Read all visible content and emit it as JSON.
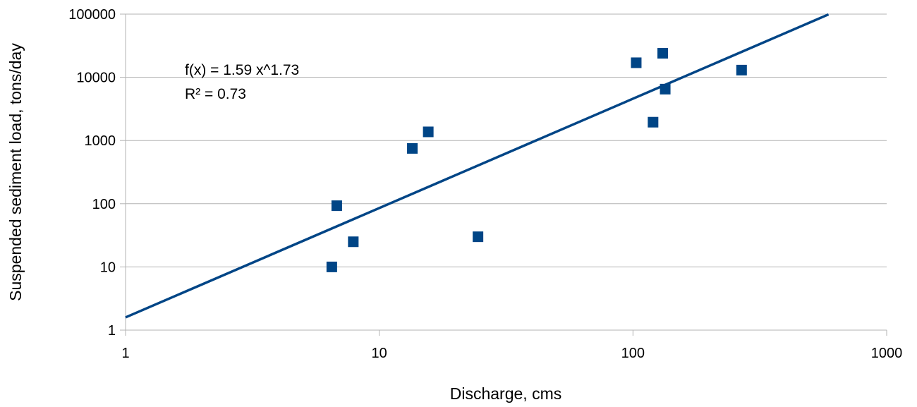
{
  "chart_data": {
    "type": "scatter",
    "xlabel": "Discharge, cms",
    "ylabel": "Suspended sediment load, tons/day",
    "x_scale": "log",
    "y_scale": "log",
    "xlim": [
      1,
      1000
    ],
    "ylim": [
      1,
      100000
    ],
    "x_ticks": [
      "1",
      "10",
      "100",
      "1000"
    ],
    "y_ticks": [
      "1",
      "10",
      "100",
      "1000",
      "10000",
      "100000"
    ],
    "grid": "horizontal",
    "legend": "none",
    "points": [
      {
        "x": 6.5,
        "y": 10
      },
      {
        "x": 6.8,
        "y": 93
      },
      {
        "x": 7.9,
        "y": 25
      },
      {
        "x": 13.5,
        "y": 750
      },
      {
        "x": 15.6,
        "y": 1370
      },
      {
        "x": 24.5,
        "y": 30
      },
      {
        "x": 103,
        "y": 17000
      },
      {
        "x": 120,
        "y": 1950
      },
      {
        "x": 131,
        "y": 24000
      },
      {
        "x": 134,
        "y": 6500
      },
      {
        "x": 268,
        "y": 13000
      }
    ],
    "trendline": {
      "type": "power",
      "a": 1.59,
      "b": 1.73,
      "x_range": [
        1,
        590
      ],
      "equation_text": "f(x) = 1.59 x^1.73",
      "r2_text": "R² = 0.73"
    },
    "colors": {
      "marker": "#004586",
      "trendline": "#004586",
      "grid": "#b3b3b3",
      "axis": "#b3b3b3"
    }
  }
}
